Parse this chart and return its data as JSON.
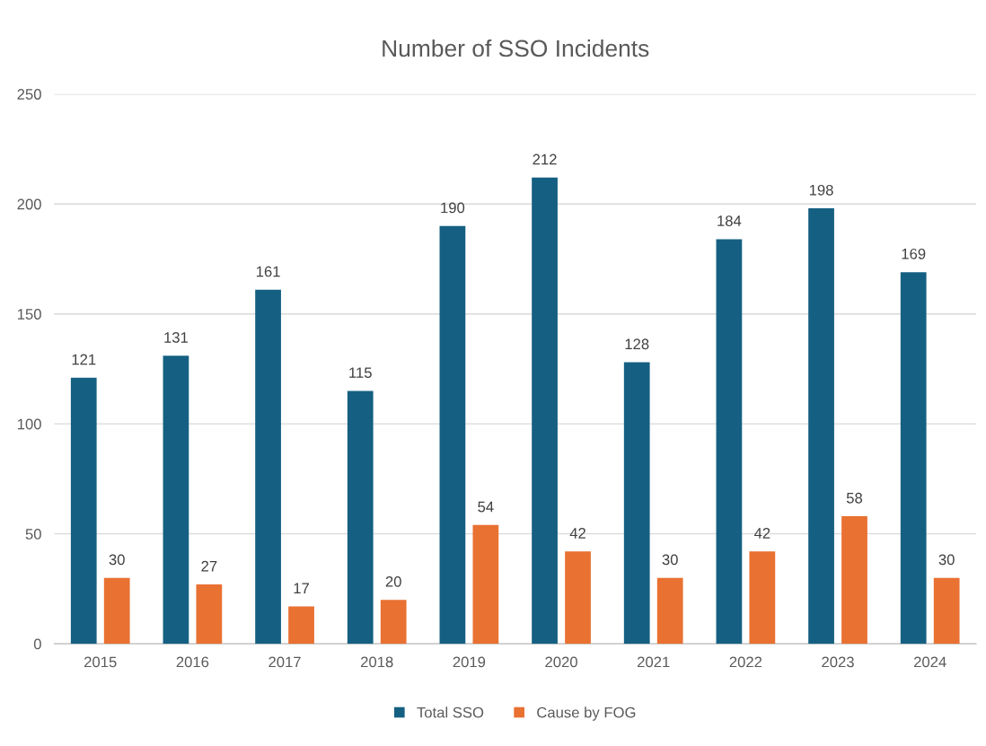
{
  "chart_data": {
    "type": "bar",
    "title": "Number of SSO Incidents",
    "categories": [
      "2015",
      "2016",
      "2017",
      "2018",
      "2019",
      "2020",
      "2021",
      "2022",
      "2023",
      "2024"
    ],
    "series": [
      {
        "name": "Total SSO",
        "color": "#156082",
        "values": [
          121,
          131,
          161,
          115,
          190,
          212,
          128,
          184,
          198,
          169
        ]
      },
      {
        "name": "Cause by FOG",
        "color": "#e97132",
        "values": [
          30,
          27,
          17,
          20,
          54,
          42,
          30,
          42,
          58,
          30
        ]
      }
    ],
    "ylim": [
      0,
      250
    ],
    "yticks": [
      0,
      50,
      100,
      150,
      200,
      250
    ],
    "grid": "y",
    "legend": "bottom",
    "data_labels": true
  }
}
